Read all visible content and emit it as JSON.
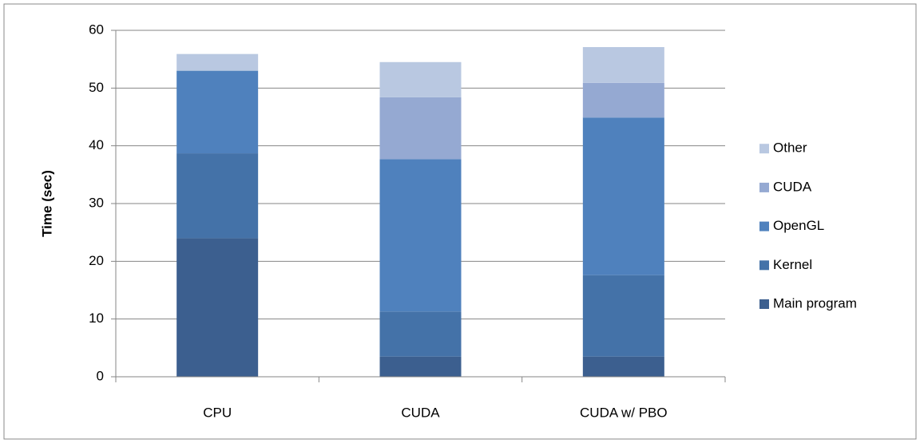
{
  "chart_data": {
    "type": "bar",
    "stacked": true,
    "y_label": "Time (sec)",
    "categories": [
      "CPU",
      "CUDA",
      "CUDA w/ PBO"
    ],
    "series": [
      {
        "name": "Main program",
        "color": "#3c5f8f",
        "values": [
          24,
          3.5,
          3.5
        ]
      },
      {
        "name": "Kernel",
        "color": "#4472a8",
        "values": [
          14.7,
          7.8,
          14.1
        ]
      },
      {
        "name": "OpenGL",
        "color": "#4f81bd",
        "values": [
          14.3,
          26.4,
          27.3
        ]
      },
      {
        "name": "CUDA",
        "color": "#95a9d2",
        "values": [
          0,
          10.7,
          6.0
        ]
      },
      {
        "name": "Other",
        "color": "#b9c8e1",
        "values": [
          2.9,
          6.1,
          6.2
        ]
      }
    ],
    "ylim": [
      0,
      60
    ],
    "yticks": [
      0,
      10,
      20,
      30,
      40,
      50,
      60
    ],
    "grid": true,
    "legend": "right"
  }
}
